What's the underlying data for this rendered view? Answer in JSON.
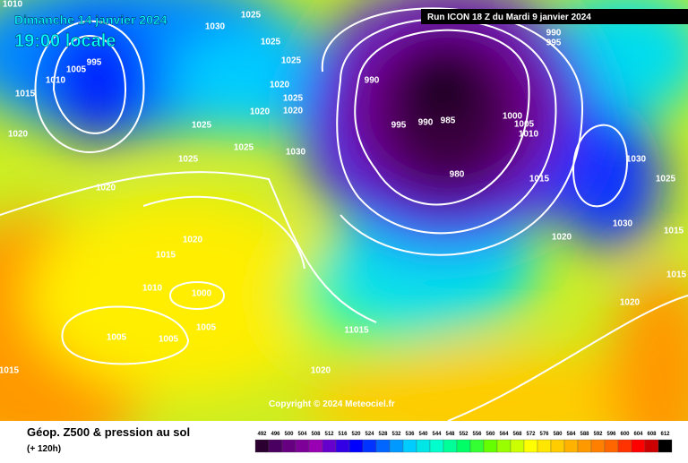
{
  "header": {
    "date": "Dimanche 14 janvier 2024",
    "time": "19:00 locale",
    "run": "Run ICON 18 Z du Mardi 9 janvier 2024"
  },
  "footer": {
    "title": "Géop. Z500 & pression au sol",
    "lead": "(+ 120h)",
    "copyright": "Copyright © 2024 Meteociel.fr"
  },
  "isobars": {
    "labels": [
      "1010",
      "1030",
      "1025",
      "1025",
      "995",
      "1005",
      "1010",
      "1015",
      "1020",
      "1025",
      "1025",
      "1025",
      "1025",
      "1020",
      "1025",
      "1020",
      "1020",
      "1030",
      "1020",
      "1020",
      "1015",
      "1010",
      "1000",
      "1005",
      "1005",
      "1005",
      "1015",
      "11015",
      "1020",
      "990",
      "995",
      "990",
      "985",
      "980",
      "1000",
      "1005",
      "1010",
      "1015",
      "1020",
      "1030",
      "1030",
      "1025",
      "1015",
      "1015",
      "1020",
      "990",
      "995"
    ]
  },
  "legend": {
    "ticks": [
      492,
      496,
      500,
      504,
      508,
      512,
      516,
      520,
      524,
      528,
      532,
      536,
      540,
      544,
      548,
      552,
      556,
      560,
      564,
      568,
      572,
      576,
      580,
      584,
      588,
      592,
      596,
      600,
      604,
      608,
      612
    ],
    "colors": [
      "#2b0030",
      "#4a0060",
      "#660080",
      "#7d0099",
      "#9900b3",
      "#6600cc",
      "#3300e6",
      "#0000ff",
      "#0033ff",
      "#0066ff",
      "#0099ff",
      "#00ccff",
      "#00e5e5",
      "#00ffcc",
      "#00ff99",
      "#00ff66",
      "#33ff33",
      "#66ff00",
      "#99ff00",
      "#ccff00",
      "#ffff00",
      "#ffe600",
      "#ffcc00",
      "#ffb300",
      "#ff9900",
      "#ff8000",
      "#ff6600",
      "#ff3300",
      "#ff0000",
      "#cc0000",
      "#000000"
    ]
  }
}
